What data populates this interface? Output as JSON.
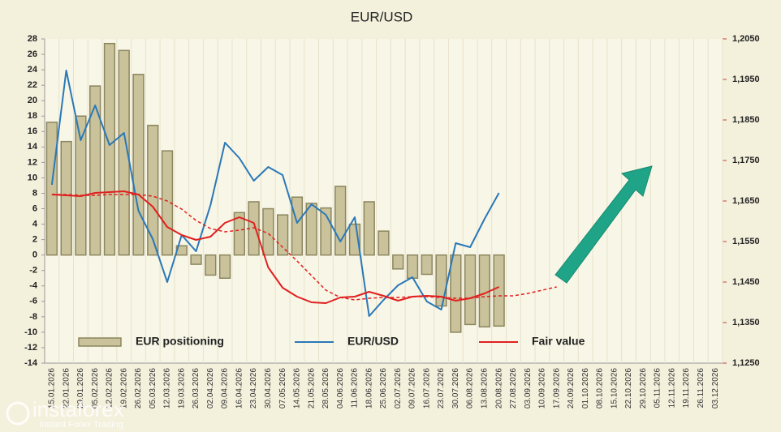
{
  "chart_data": {
    "type": "bar_line",
    "title": "EUR/USD",
    "categories": [
      "15.01.2026",
      "22.01.2026",
      "29.01.2026",
      "05.02.2026",
      "12.02.2026",
      "19.02.2026",
      "26.02.2026",
      "05.03.2026",
      "12.03.2026",
      "19.03.2026",
      "26.03.2026",
      "02.04.2026",
      "09.04.2026",
      "16.04.2026",
      "23.04.2026",
      "30.04.2026",
      "07.05.2026",
      "14.05.2026",
      "21.05.2026",
      "28.05.2026",
      "04.06.2026",
      "11.06.2026",
      "18.06.2026",
      "25.06.2026",
      "02.07.2026",
      "09.07.2026",
      "16.07.2026",
      "23.07.2026",
      "30.07.2026",
      "06.08.2026",
      "13.08.2026",
      "20.08.2026",
      "27.08.2026",
      "03.09.2026",
      "10.09.2026",
      "17.09.2026",
      "24.09.2026",
      "01.10.2026",
      "08.10.2026",
      "15.10.2026",
      "22.10.2026",
      "29.10.2026",
      "05.11.2026",
      "12.11.2026",
      "19.11.2026",
      "26.11.2026",
      "03.12.2026"
    ],
    "series": [
      {
        "name": "EUR positioning",
        "type": "bar",
        "color": "#c9c29a",
        "axis": "y",
        "values": [
          17.2,
          14.7,
          18,
          21.9,
          27.4,
          26.5,
          23.4,
          16.8,
          13.5,
          1.2,
          -1.2,
          -2.6,
          -3,
          5.5,
          6.9,
          6,
          5.2,
          7.5,
          6.7,
          6.1,
          8.9,
          4,
          6.9,
          3.1,
          -1.8,
          -3,
          -2.5,
          -6.6,
          -10,
          -9,
          -9.3,
          -9.2,
          null,
          null,
          null,
          null,
          null,
          null,
          null,
          null,
          null,
          null,
          null,
          null,
          null,
          null,
          null
        ]
      },
      {
        "name": "EUR/USD",
        "type": "line",
        "color": "#2a78b8",
        "axis": "y2",
        "values": [
          1.169,
          1.1972,
          1.18,
          1.1886,
          1.1788,
          1.1818,
          1.1626,
          1.1556,
          1.145,
          1.1566,
          1.1526,
          1.164,
          1.1794,
          1.1756,
          1.17,
          1.1734,
          1.1714,
          1.1596,
          1.1642,
          1.1616,
          1.155,
          1.161,
          1.1366,
          1.1406,
          1.1442,
          1.1462,
          1.1402,
          1.1382,
          1.1546,
          1.1536,
          1.1606,
          1.167,
          null,
          null,
          null,
          null,
          null,
          null,
          null,
          null,
          null,
          null,
          null,
          null,
          null,
          null,
          null
        ]
      },
      {
        "name": "Fair value",
        "type": "line",
        "color": "#e02020",
        "axis": "y2",
        "values": [
          1.1666,
          1.1664,
          1.1662,
          1.167,
          1.1672,
          1.1674,
          1.1666,
          1.1636,
          1.1586,
          1.1566,
          1.1554,
          1.1562,
          1.1596,
          1.161,
          1.1596,
          1.1486,
          1.1436,
          1.1414,
          1.14,
          1.1398,
          1.1412,
          1.1414,
          1.1426,
          1.1416,
          1.1404,
          1.1414,
          1.1416,
          1.1414,
          1.1404,
          1.141,
          1.1422,
          1.1438,
          null,
          null,
          null,
          null,
          null,
          null,
          null,
          null,
          null,
          null,
          null,
          null,
          null,
          null,
          null
        ]
      },
      {
        "type": "line",
        "dashed": true,
        "color": "#e02020",
        "axis": "y2",
        "values": [
          1.1666,
          1.1666,
          1.1664,
          1.1664,
          1.1666,
          1.1666,
          1.1666,
          1.1662,
          1.165,
          1.163,
          1.1602,
          1.1582,
          1.1574,
          1.1578,
          1.1584,
          1.157,
          1.1536,
          1.1502,
          1.1466,
          1.143,
          1.1412,
          1.1406,
          1.141,
          1.1412,
          1.1412,
          1.1414,
          1.1414,
          1.1412,
          1.141,
          1.141,
          1.1414,
          1.1416,
          1.1416,
          1.1422,
          1.143,
          1.1438,
          null,
          null,
          null,
          null,
          null,
          null,
          null,
          null,
          null,
          null,
          null
        ]
      }
    ],
    "ylim": [
      -14,
      28
    ],
    "yticks": [
      -14,
      -12,
      -10,
      -8,
      -6,
      -4,
      -2,
      0,
      2,
      4,
      6,
      8,
      10,
      12,
      14,
      16,
      18,
      20,
      22,
      24,
      26,
      28
    ],
    "y2lim": [
      1.125,
      1.205
    ],
    "y2ticks": [
      {
        "value": 1.125,
        "label": "1,1250"
      },
      {
        "value": 1.135,
        "label": "1,1350"
      },
      {
        "value": 1.145,
        "label": "1,1450"
      },
      {
        "value": 1.155,
        "label": "1,1550"
      },
      {
        "value": 1.165,
        "label": "1,1650"
      },
      {
        "value": 1.175,
        "label": "1,1750"
      },
      {
        "value": 1.185,
        "label": "1,1850"
      },
      {
        "value": 1.195,
        "label": "1,1950"
      },
      {
        "value": 1.205,
        "label": "1,2050"
      }
    ],
    "legend": "bottom",
    "grid": false,
    "watermark": {
      "brand": "instaforex",
      "tagline": "Instant Forex Trading"
    }
  }
}
